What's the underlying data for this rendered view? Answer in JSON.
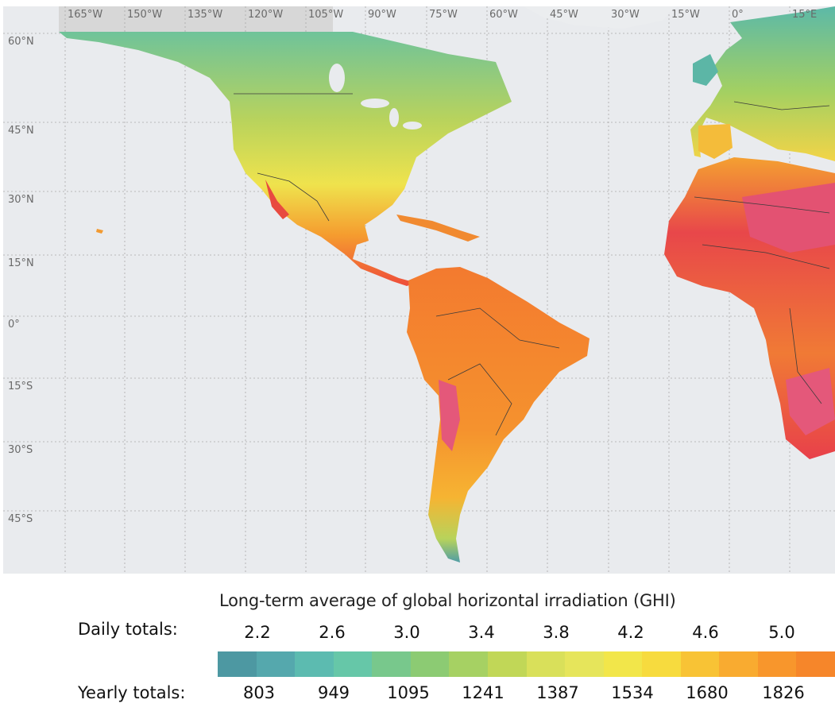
{
  "map": {
    "title": "Long-term average of global horizontal irradiation (GHI)",
    "longitude_labels": [
      "165°W",
      "150°W",
      "135°W",
      "120°W",
      "105°W",
      "90°W",
      "75°W",
      "60°W",
      "45°W",
      "30°W",
      "15°W",
      "0°",
      "15°E"
    ],
    "latitude_labels": [
      "60°N",
      "45°N",
      "30°N",
      "15°N",
      "0°",
      "15°S",
      "30°S",
      "45°S"
    ],
    "colors": {
      "ocean": "#e9ebee",
      "grid": "#a9a9a9",
      "border": "#3b3b3b",
      "header_band": "#d7d7d7"
    }
  },
  "legend": {
    "title": "Long-term average of global horizontal irradiation (GHI)",
    "daily_label": "Daily totals:",
    "yearly_label": "Yearly totals:",
    "daily_ticks": [
      "2.2",
      "2.6",
      "3.0",
      "3.4",
      "3.8",
      "4.2",
      "4.6",
      "5.0"
    ],
    "yearly_ticks": [
      "803",
      "949",
      "1095",
      "1241",
      "1387",
      "1534",
      "1680",
      "1826"
    ],
    "color_scale": [
      "#4d98a2",
      "#55a8ad",
      "#5cbbb0",
      "#66c7a8",
      "#78c88c",
      "#8ccb73",
      "#a6d163",
      "#c1d757",
      "#d9e05a",
      "#e6e55b",
      "#f2e64a",
      "#f7db3e",
      "#f8c335",
      "#f9ab30",
      "#f8962c",
      "#f6862a"
    ]
  }
}
